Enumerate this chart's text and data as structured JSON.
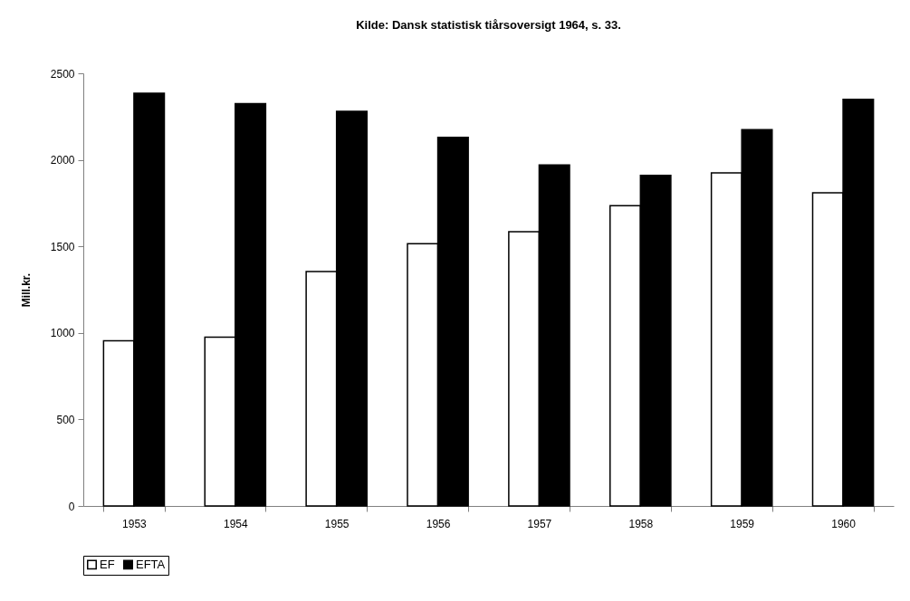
{
  "chart_data": {
    "type": "bar",
    "title": "Kilde: Dansk statistisk tiårsoversigt 1964, s. 33.",
    "ylabel": "Mill.kr.",
    "categories": [
      "1953",
      "1954",
      "1955",
      "1956",
      "1957",
      "1958",
      "1959",
      "1960"
    ],
    "series": [
      {
        "name": "EF",
        "color": "#ffffff",
        "values": [
          955,
          975,
          1355,
          1515,
          1585,
          1735,
          1925,
          1810
        ]
      },
      {
        "name": "EFTA",
        "color": "#000000",
        "values": [
          2385,
          2325,
          2280,
          2130,
          1970,
          1910,
          2175,
          2350
        ]
      }
    ],
    "ylim": [
      0,
      2500
    ],
    "yticks": [
      0,
      500,
      1000,
      1500,
      2000,
      2500
    ],
    "grid": false,
    "legend": "bottom"
  }
}
